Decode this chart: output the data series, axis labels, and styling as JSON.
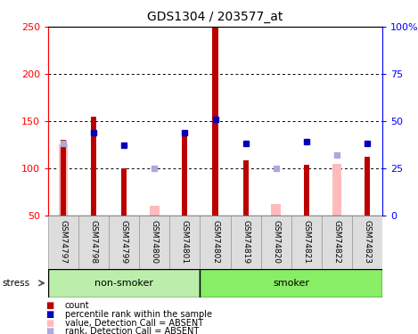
{
  "title": "GDS1304 / 203577_at",
  "samples": [
    "GSM74797",
    "GSM74798",
    "GSM74799",
    "GSM74800",
    "GSM74801",
    "GSM74802",
    "GSM74819",
    "GSM74820",
    "GSM74821",
    "GSM74822",
    "GSM74823"
  ],
  "red_values": [
    130,
    155,
    100,
    0,
    140,
    250,
    108,
    0,
    104,
    0,
    112
  ],
  "pink_values": [
    125,
    0,
    0,
    60,
    0,
    0,
    0,
    62,
    0,
    105,
    0
  ],
  "blue_pct": [
    0,
    44,
    37,
    0,
    44,
    51,
    38,
    0,
    39,
    0,
    38
  ],
  "lblue_pct": [
    38,
    0,
    0,
    25,
    0,
    0,
    0,
    25,
    0,
    32,
    0
  ],
  "non_smoker_count": 5,
  "smoker_count": 6,
  "ylim_left": [
    50,
    250
  ],
  "ylim_right": [
    0,
    100
  ],
  "yticks_left": [
    50,
    100,
    150,
    200,
    250
  ],
  "ytick_labels_left": [
    "50",
    "100",
    "150",
    "200",
    "250"
  ],
  "yticks_right": [
    0,
    25,
    50,
    75,
    100
  ],
  "ytick_labels_right": [
    "0",
    "25",
    "50",
    "75",
    "100%"
  ],
  "hlines": [
    100,
    150,
    200
  ],
  "red_color": "#bb0000",
  "pink_color": "#ffbbbb",
  "blue_color": "#0000bb",
  "lblue_color": "#aaaadd",
  "label_bg": "#dddddd",
  "nonsmoker_bg": "#bbeeaa",
  "smoker_bg": "#88ee66",
  "green_border": "#44aa44",
  "legend_items": [
    [
      "count",
      "#bb0000",
      "red_sq"
    ],
    [
      "percentile rank within the sample",
      "#0000bb",
      "blue_sq"
    ],
    [
      "value, Detection Call = ABSENT",
      "#ffbbbb",
      "pink_sq"
    ],
    [
      "rank, Detection Call = ABSENT",
      "#aaaadd",
      "lblue_sq"
    ]
  ]
}
